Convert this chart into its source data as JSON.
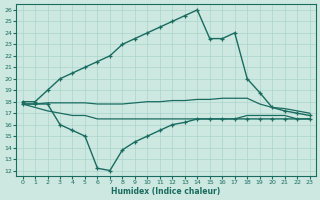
{
  "xlabel": "Humidex (Indice chaleur)",
  "xlim": [
    -0.5,
    23.5
  ],
  "ylim": [
    11.5,
    26.5
  ],
  "xticks": [
    0,
    1,
    2,
    3,
    4,
    5,
    6,
    7,
    8,
    9,
    10,
    11,
    12,
    13,
    14,
    15,
    16,
    17,
    18,
    19,
    20,
    21,
    22,
    23
  ],
  "yticks": [
    12,
    13,
    14,
    15,
    16,
    17,
    18,
    19,
    20,
    21,
    22,
    23,
    24,
    25,
    26
  ],
  "bg_color": "#cce8e0",
  "line_color": "#1a6b60",
  "grid_color": "#aad4cc",
  "lines": [
    {
      "x": [
        0,
        1,
        2,
        3,
        4,
        5,
        6,
        7,
        8,
        9,
        10,
        11,
        12,
        13,
        14,
        15,
        16,
        17,
        18,
        19,
        20,
        21,
        22,
        23
      ],
      "y": [
        18,
        18,
        19,
        20,
        20.5,
        21,
        21.5,
        22,
        23,
        23.5,
        24,
        24.5,
        25,
        25.5,
        26,
        23.5,
        23.5,
        24,
        20,
        18.8,
        17.5,
        17.2,
        17,
        16.8
      ],
      "marker": true,
      "lw": 1.0
    },
    {
      "x": [
        0,
        1,
        2,
        3,
        4,
        5,
        6,
        7,
        8,
        9,
        10,
        11,
        12,
        13,
        14,
        15,
        16,
        17,
        18,
        19,
        20,
        21,
        22,
        23
      ],
      "y": [
        17.8,
        17.8,
        17.9,
        17.9,
        17.9,
        17.9,
        17.8,
        17.8,
        17.8,
        17.9,
        18.0,
        18.0,
        18.1,
        18.1,
        18.2,
        18.2,
        18.3,
        18.3,
        18.3,
        17.8,
        17.5,
        17.4,
        17.2,
        17.0
      ],
      "marker": false,
      "lw": 0.9
    },
    {
      "x": [
        0,
        1,
        2,
        3,
        4,
        5,
        6,
        7,
        8,
        9,
        10,
        11,
        12,
        13,
        14,
        15,
        16,
        17,
        18,
        19,
        20,
        21,
        22,
        23
      ],
      "y": [
        17.8,
        17.8,
        17.8,
        16.0,
        15.5,
        15.0,
        12.2,
        12.0,
        13.8,
        14.5,
        15.0,
        15.5,
        16.0,
        16.2,
        16.5,
        16.5,
        16.5,
        16.5,
        16.5,
        16.5,
        16.5,
        16.5,
        16.5,
        16.5
      ],
      "marker": true,
      "lw": 1.0
    },
    {
      "x": [
        0,
        1,
        2,
        3,
        4,
        5,
        6,
        7,
        8,
        9,
        10,
        11,
        12,
        13,
        14,
        15,
        16,
        17,
        18,
        19,
        20,
        21,
        22,
        23
      ],
      "y": [
        17.8,
        17.5,
        17.2,
        17.0,
        16.8,
        16.8,
        16.5,
        16.5,
        16.5,
        16.5,
        16.5,
        16.5,
        16.5,
        16.5,
        16.5,
        16.5,
        16.5,
        16.5,
        16.8,
        16.8,
        16.8,
        16.8,
        16.5,
        16.5
      ],
      "marker": false,
      "lw": 0.9
    }
  ]
}
